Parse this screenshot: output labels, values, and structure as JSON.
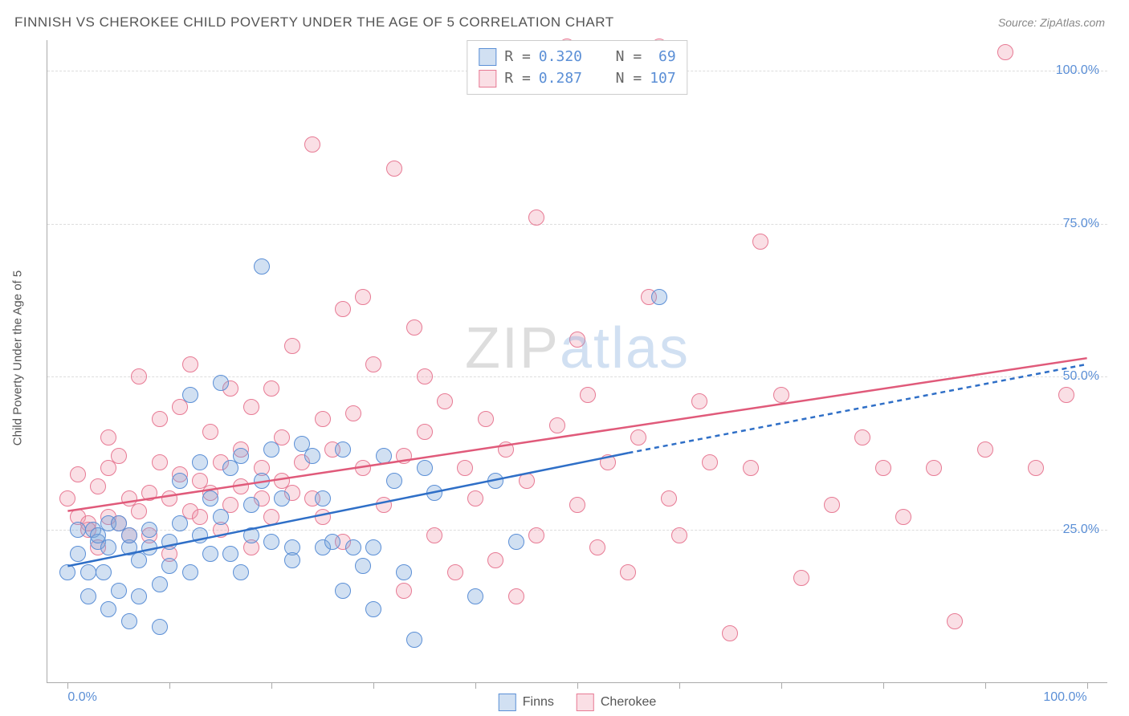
{
  "title": "FINNISH VS CHEROKEE CHILD POVERTY UNDER THE AGE OF 5 CORRELATION CHART",
  "source_label": "Source:",
  "source_name": "ZipAtlas.com",
  "ylabel": "Child Poverty Under the Age of 5",
  "watermark": {
    "part1": "ZIP",
    "part2": "atlas"
  },
  "chart": {
    "type": "scatter",
    "background_color": "#ffffff",
    "grid_color": "#dddddd",
    "axis_color": "#aaaaaa",
    "tick_label_color": "#5b8fd6",
    "text_color": "#555555",
    "xlim": [
      -2,
      102
    ],
    "ylim": [
      0,
      105
    ],
    "yticks": [
      25,
      50,
      75,
      100
    ],
    "ytick_labels": [
      "25.0%",
      "50.0%",
      "75.0%",
      "100.0%"
    ],
    "xticks": [
      0,
      10,
      20,
      30,
      40,
      50,
      60,
      70,
      80,
      90,
      100
    ],
    "xtick_labels": {
      "0": "0.0%",
      "100": "100.0%"
    },
    "marker_radius": 9,
    "marker_border_width": 1.5,
    "line_width": 2.5,
    "series": [
      {
        "name": "Finns",
        "fill_color": "rgba(123,167,217,0.35)",
        "stroke_color": "#5b8fd6",
        "line_color": "#2f6fc7",
        "R": "0.320",
        "N": "69",
        "trend": {
          "x1": 0,
          "y1": 19,
          "x2_solid": 55,
          "y2_solid": 37.5,
          "x2_dash": 100,
          "y2_dash": 52
        },
        "points": [
          [
            0,
            18
          ],
          [
            1,
            21
          ],
          [
            1,
            25
          ],
          [
            2,
            18
          ],
          [
            2,
            14
          ],
          [
            2.5,
            25
          ],
          [
            3,
            23
          ],
          [
            3,
            24
          ],
          [
            3.5,
            18
          ],
          [
            4,
            12
          ],
          [
            4,
            22
          ],
          [
            4,
            26
          ],
          [
            5,
            15
          ],
          [
            5,
            26
          ],
          [
            6,
            10
          ],
          [
            6,
            22
          ],
          [
            6,
            24
          ],
          [
            7,
            20
          ],
          [
            7,
            14
          ],
          [
            8,
            25
          ],
          [
            8,
            22
          ],
          [
            9,
            16
          ],
          [
            9,
            9
          ],
          [
            10,
            23
          ],
          [
            10,
            19
          ],
          [
            11,
            33
          ],
          [
            11,
            26
          ],
          [
            12,
            47
          ],
          [
            12,
            18
          ],
          [
            13,
            36
          ],
          [
            13,
            24
          ],
          [
            14,
            30
          ],
          [
            14,
            21
          ],
          [
            15,
            49
          ],
          [
            15,
            27
          ],
          [
            16,
            35
          ],
          [
            16,
            21
          ],
          [
            17,
            37
          ],
          [
            17,
            18
          ],
          [
            18,
            29
          ],
          [
            18,
            24
          ],
          [
            19,
            68
          ],
          [
            19,
            33
          ],
          [
            20,
            23
          ],
          [
            20,
            38
          ],
          [
            21,
            30
          ],
          [
            22,
            22
          ],
          [
            22,
            20
          ],
          [
            23,
            39
          ],
          [
            24,
            37
          ],
          [
            25,
            22
          ],
          [
            25,
            30
          ],
          [
            26,
            23
          ],
          [
            27,
            15
          ],
          [
            27,
            38
          ],
          [
            28,
            22
          ],
          [
            29,
            19
          ],
          [
            30,
            12
          ],
          [
            30,
            22
          ],
          [
            31,
            37
          ],
          [
            32,
            33
          ],
          [
            33,
            18
          ],
          [
            34,
            7
          ],
          [
            35,
            35
          ],
          [
            36,
            31
          ],
          [
            40,
            14
          ],
          [
            42,
            33
          ],
          [
            44,
            23
          ],
          [
            58,
            63
          ]
        ]
      },
      {
        "name": "Cherokee",
        "fill_color": "rgba(240,150,170,0.30)",
        "stroke_color": "#e77a94",
        "line_color": "#e05a7a",
        "R": "0.287",
        "N": "107",
        "trend": {
          "x1": 0,
          "y1": 28,
          "x2_solid": 100,
          "y2_solid": 53
        },
        "points": [
          [
            0,
            30
          ],
          [
            1,
            27
          ],
          [
            1,
            34
          ],
          [
            2,
            26
          ],
          [
            2,
            25
          ],
          [
            3,
            32
          ],
          [
            3,
            22
          ],
          [
            4,
            27
          ],
          [
            4,
            35
          ],
          [
            4,
            40
          ],
          [
            5,
            26
          ],
          [
            5,
            37
          ],
          [
            6,
            24
          ],
          [
            6,
            30
          ],
          [
            7,
            50
          ],
          [
            7,
            28
          ],
          [
            8,
            31
          ],
          [
            8,
            24
          ],
          [
            9,
            43
          ],
          [
            9,
            36
          ],
          [
            10,
            30
          ],
          [
            10,
            21
          ],
          [
            11,
            34
          ],
          [
            11,
            45
          ],
          [
            12,
            28
          ],
          [
            12,
            52
          ],
          [
            13,
            33
          ],
          [
            13,
            27
          ],
          [
            14,
            31
          ],
          [
            14,
            41
          ],
          [
            15,
            25
          ],
          [
            15,
            36
          ],
          [
            16,
            48
          ],
          [
            16,
            29
          ],
          [
            17,
            38
          ],
          [
            17,
            32
          ],
          [
            18,
            22
          ],
          [
            18,
            45
          ],
          [
            19,
            35
          ],
          [
            19,
            30
          ],
          [
            20,
            48
          ],
          [
            20,
            27
          ],
          [
            21,
            33
          ],
          [
            21,
            40
          ],
          [
            22,
            55
          ],
          [
            22,
            31
          ],
          [
            23,
            36
          ],
          [
            24,
            30
          ],
          [
            24,
            88
          ],
          [
            25,
            43
          ],
          [
            25,
            27
          ],
          [
            26,
            38
          ],
          [
            27,
            61
          ],
          [
            27,
            23
          ],
          [
            28,
            44
          ],
          [
            29,
            63
          ],
          [
            29,
            35
          ],
          [
            30,
            52
          ],
          [
            31,
            29
          ],
          [
            32,
            84
          ],
          [
            33,
            37
          ],
          [
            33,
            15
          ],
          [
            34,
            58
          ],
          [
            35,
            41
          ],
          [
            36,
            24
          ],
          [
            37,
            46
          ],
          [
            38,
            18
          ],
          [
            39,
            35
          ],
          [
            40,
            30
          ],
          [
            41,
            43
          ],
          [
            42,
            20
          ],
          [
            43,
            38
          ],
          [
            44,
            14
          ],
          [
            45,
            33
          ],
          [
            46,
            76
          ],
          [
            46,
            24
          ],
          [
            48,
            42
          ],
          [
            49,
            104
          ],
          [
            50,
            29
          ],
          [
            51,
            47
          ],
          [
            52,
            22
          ],
          [
            53,
            36
          ],
          [
            55,
            18
          ],
          [
            56,
            40
          ],
          [
            57,
            63
          ],
          [
            58,
            104
          ],
          [
            59,
            30
          ],
          [
            60,
            24
          ],
          [
            62,
            46
          ],
          [
            63,
            36
          ],
          [
            65,
            8
          ],
          [
            67,
            35
          ],
          [
            68,
            72
          ],
          [
            70,
            47
          ],
          [
            72,
            17
          ],
          [
            75,
            29
          ],
          [
            78,
            40
          ],
          [
            80,
            35
          ],
          [
            82,
            27
          ],
          [
            85,
            35
          ],
          [
            87,
            10
          ],
          [
            90,
            38
          ],
          [
            92,
            103
          ],
          [
            95,
            35
          ],
          [
            98,
            47
          ],
          [
            50,
            56
          ],
          [
            35,
            50
          ]
        ]
      }
    ]
  },
  "legend_bottom": [
    {
      "label": "Finns",
      "series_index": 0
    },
    {
      "label": "Cherokee",
      "series_index": 1
    }
  ]
}
